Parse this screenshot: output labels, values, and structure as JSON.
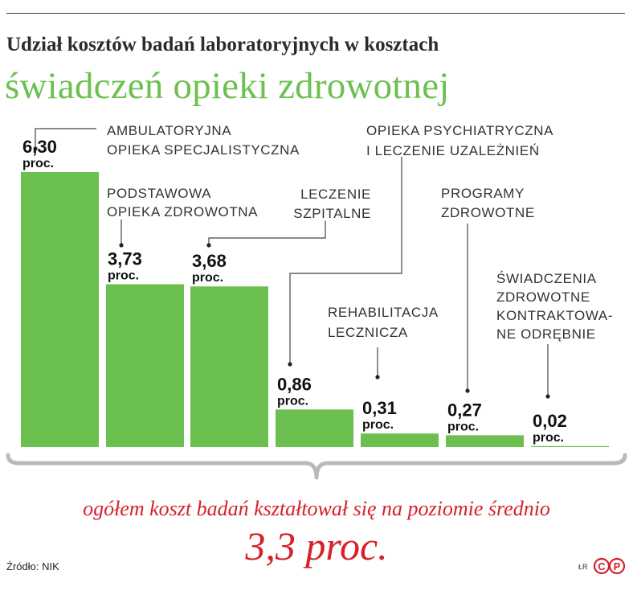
{
  "header": {
    "title": "Udział kosztów badań laboratoryjnych w kosztach",
    "subtitle": "świadczeń opieki zdrowotnej"
  },
  "chart_data": {
    "type": "bar",
    "title": "Udział kosztów badań laboratoryjnych w kosztach świadczeń opieki zdrowotnej",
    "categories": [
      [
        "AMBULATORYJNA",
        "OPIEKA SPECJALISTYCZNA"
      ],
      [
        "PODSTAWOWA",
        "OPIEKA ZDROWOTNA"
      ],
      [
        "LECZENIE",
        "SZPITALNE"
      ],
      [
        "OPIEKA PSYCHIATRYCZNA",
        "I LECZENIE UZALEŻNIEŃ"
      ],
      [
        "REHABILITACJA",
        "LECZNICZA"
      ],
      [
        "PROGRAMY",
        "ZDROWOTNE"
      ],
      [
        "ŚWIADCZENIA",
        "ZDROWOTNE",
        "KONTRAKTOWA-",
        "NE ODRĘBNIE"
      ]
    ],
    "values": [
      6.3,
      3.73,
      3.68,
      0.86,
      0.31,
      0.27,
      0.02
    ],
    "value_labels": [
      "6,30",
      "3,73",
      "3,68",
      "0,86",
      "0,31",
      "0,27",
      "0,02"
    ],
    "unit": "proc.",
    "ylim": [
      0,
      6.3
    ],
    "grid": false,
    "bar_color": "#6cc04f"
  },
  "summary": {
    "text": "ogółem koszt badań kształtował się na poziomie średnio",
    "value": "3,3 proc."
  },
  "footer": {
    "source": "Źródło: NIK",
    "signature": "ŁR",
    "logo_letters": "CP",
    "logo_color": "#d6202a"
  }
}
